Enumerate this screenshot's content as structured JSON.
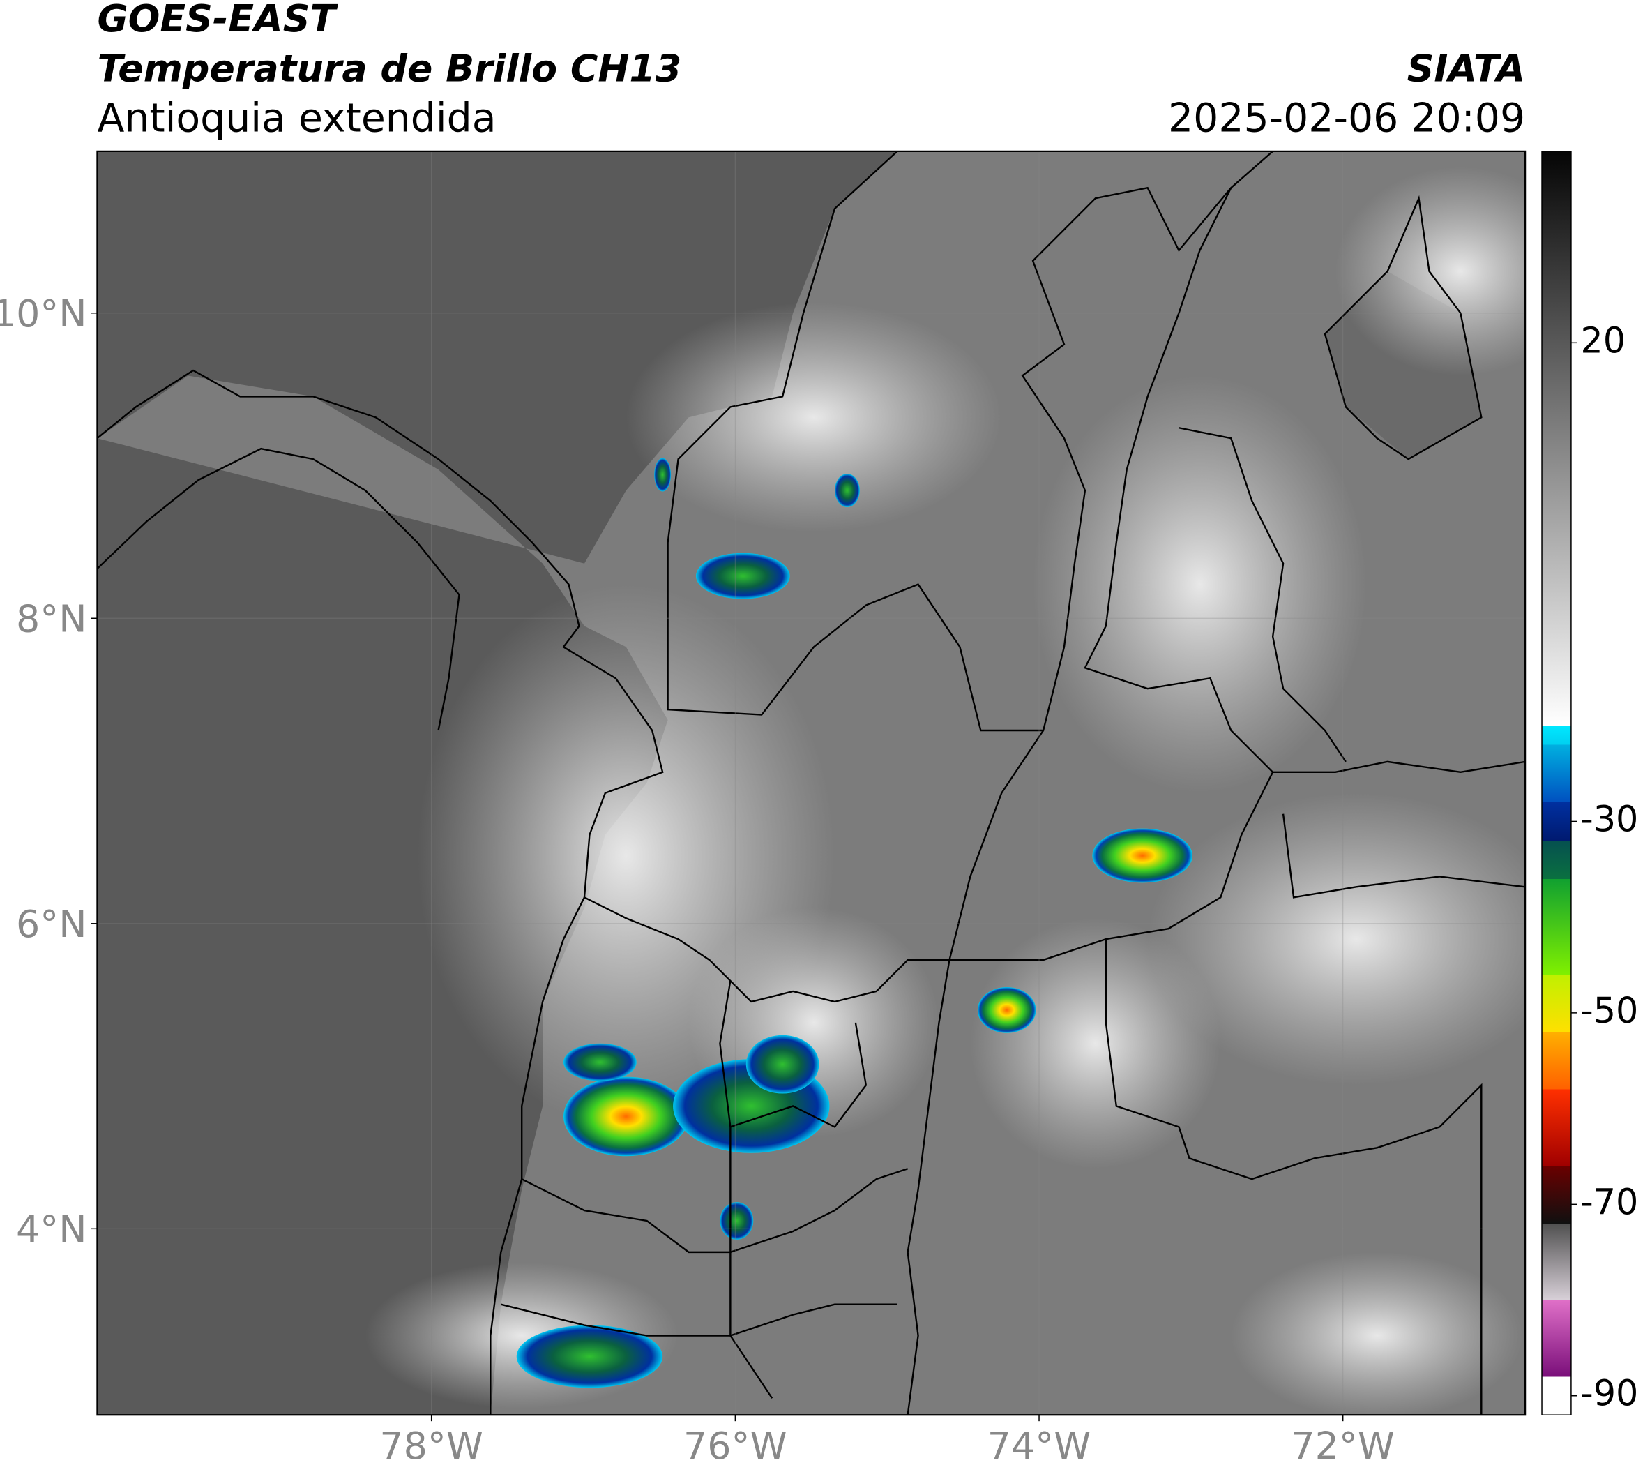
{
  "chart_data": {
    "type": "map",
    "title": "GOES-EAST",
    "subtitle": "Temperatura de Brillo CH13",
    "region": "Antioquia extendida",
    "source": "SIATA",
    "timestamp": "2025-02-06 20:09",
    "xlim": [
      -80.2,
      -70.8
    ],
    "ylim": [
      2.78,
      11.06
    ],
    "xticks": [
      {
        "value": -78,
        "label": "78°W"
      },
      {
        "value": -76,
        "label": "76°W"
      },
      {
        "value": -74,
        "label": "74°W"
      },
      {
        "value": -72,
        "label": "72°W"
      }
    ],
    "yticks": [
      {
        "value": 4,
        "label": "4°N"
      },
      {
        "value": 6,
        "label": "6°N"
      },
      {
        "value": 8,
        "label": "8°N"
      },
      {
        "value": 10,
        "label": "10°N"
      }
    ],
    "grid": true,
    "colorbar": {
      "lim": [
        -92,
        40
      ],
      "ticks": [
        20,
        -30,
        -50,
        -70,
        -90
      ],
      "colors": [
        {
          "value": -92,
          "color": "#ffffff"
        },
        {
          "value": -88,
          "color": "#ffffff"
        },
        {
          "value": -88,
          "color": "#7a0f7a"
        },
        {
          "value": -80,
          "color": "#e070c8"
        },
        {
          "value": -80,
          "color": "#d8d0d8"
        },
        {
          "value": -72,
          "color": "#505050"
        },
        {
          "value": -72,
          "color": "#101010"
        },
        {
          "value": -66,
          "color": "#6a0000"
        },
        {
          "value": -66,
          "color": "#a00000"
        },
        {
          "value": -58,
          "color": "#ff3000"
        },
        {
          "value": -58,
          "color": "#ff6000"
        },
        {
          "value": -52,
          "color": "#ffb000"
        },
        {
          "value": -52,
          "color": "#ffe000"
        },
        {
          "value": -46,
          "color": "#c0f000"
        },
        {
          "value": -46,
          "color": "#80f000"
        },
        {
          "value": -36,
          "color": "#10a030"
        },
        {
          "value": -36,
          "color": "#0a7040"
        },
        {
          "value": -32,
          "color": "#065050"
        },
        {
          "value": -32,
          "color": "#001a70"
        },
        {
          "value": -28,
          "color": "#0030a0"
        },
        {
          "value": -28,
          "color": "#0050c0"
        },
        {
          "value": -22,
          "color": "#00b0e0"
        },
        {
          "value": -22,
          "color": "#00d0f0"
        },
        {
          "value": -20,
          "color": "#00e8ff"
        },
        {
          "value": -20,
          "color": "#ffffff"
        },
        {
          "value": 40,
          "color": "#050505"
        }
      ]
    }
  }
}
